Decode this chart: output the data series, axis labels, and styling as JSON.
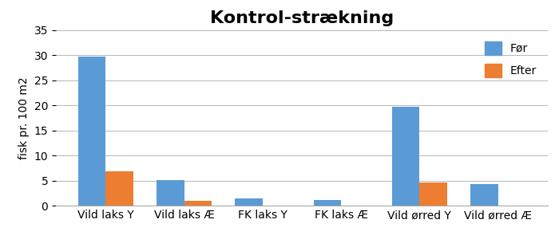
{
  "title": "Kontrol-strækning",
  "ylabel": "fisk pr. 100 m2",
  "categories": [
    "Vild laks Y",
    "Vild laks Æ",
    "FK laks Y",
    "FK laks Æ",
    "Vild ørred Y",
    "Vild ørred Æ"
  ],
  "before": [
    29.7,
    5.1,
    1.4,
    1.1,
    19.8,
    4.3
  ],
  "after": [
    6.8,
    1.0,
    0.0,
    0.0,
    4.7,
    0.0
  ],
  "color_before": "#5b9bd5",
  "color_after": "#ed7d31",
  "ylim": [
    0,
    35
  ],
  "yticks": [
    0,
    5,
    10,
    15,
    20,
    25,
    30,
    35
  ],
  "legend_labels": [
    "Før",
    "Efter"
  ],
  "bar_width": 0.35,
  "title_fontsize": 16,
  "label_fontsize": 10,
  "tick_fontsize": 10,
  "legend_fontsize": 10,
  "background_color": "#ffffff"
}
